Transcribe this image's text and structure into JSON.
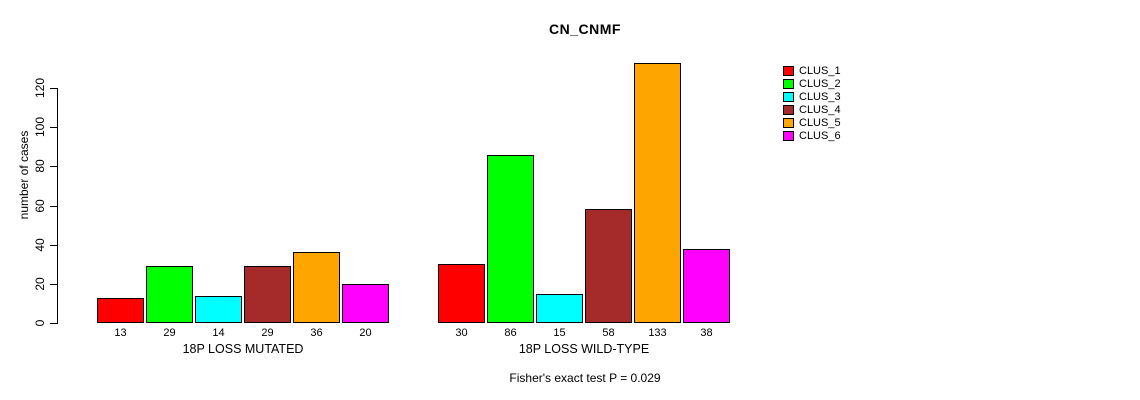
{
  "chart_data": {
    "type": "bar",
    "title": "CN_CNMF",
    "ylabel": "number of cases",
    "yticks": [
      0,
      20,
      40,
      60,
      80,
      100,
      120
    ],
    "ylim": [
      0,
      133
    ],
    "grid": false,
    "legend_position": "right",
    "axis_color": "#000000",
    "series_colors": [
      "#FF0000",
      "#00FF00",
      "#00FFFF",
      "#A52A2A",
      "#FFA500",
      "#FF00FF"
    ],
    "legend": [
      "CLUS_1",
      "CLUS_2",
      "CLUS_3",
      "CLUS_4",
      "CLUS_5",
      "CLUS_6"
    ],
    "groups": [
      {
        "label": "18P LOSS MUTATED",
        "values": [
          13,
          29,
          14,
          29,
          36,
          20
        ]
      },
      {
        "label": "18P LOSS WILD-TYPE",
        "values": [
          30,
          86,
          15,
          58,
          133,
          38
        ]
      }
    ],
    "footnote": "Fisher's exact test P = 0.029"
  }
}
